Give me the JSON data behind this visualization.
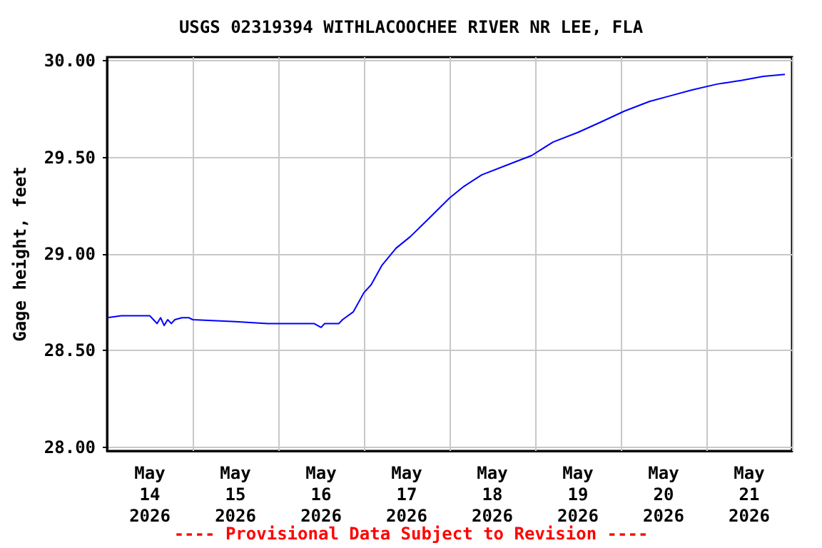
{
  "chart_data": {
    "type": "line",
    "title": "USGS 02319394 WITHLACOOCHEE RIVER NR LEE, FLA",
    "ylabel": "Gage height, feet",
    "annotations": [
      "---- Provisional Data Subject to Revision ----"
    ],
    "xlim": [
      "2026-05-14T00:00",
      "2026-05-22T00:00"
    ],
    "xticks": [
      {
        "value": "2026-05-14T12:00",
        "label": "May\n14\n2026"
      },
      {
        "value": "2026-05-15T00:00",
        "label": null
      },
      {
        "value": "2026-05-15T12:00",
        "label": "May\n15\n2026"
      },
      {
        "value": "2026-05-16T00:00",
        "label": null
      },
      {
        "value": "2026-05-16T12:00",
        "label": "May\n16\n2026"
      },
      {
        "value": "2026-05-17T00:00",
        "label": null
      },
      {
        "value": "2026-05-17T12:00",
        "label": "May\n17\n2026"
      },
      {
        "value": "2026-05-18T00:00",
        "label": null
      },
      {
        "value": "2026-05-18T12:00",
        "label": "May\n18\n2026"
      },
      {
        "value": "2026-05-19T00:00",
        "label": null
      },
      {
        "value": "2026-05-19T12:00",
        "label": "May\n19\n2026"
      },
      {
        "value": "2026-05-20T00:00",
        "label": null
      },
      {
        "value": "2026-05-20T12:00",
        "label": "May\n20\n2026"
      },
      {
        "value": "2026-05-21T00:00",
        "label": null
      },
      {
        "value": "2026-05-21T12:00",
        "label": "May\n21\n2026"
      },
      {
        "value": "2026-05-22T00:00",
        "label": null
      }
    ],
    "ylim": [
      27.98,
      30.02
    ],
    "yticks": [
      {
        "value": 28,
        "label": "28.00"
      },
      {
        "value": 28.5,
        "label": "28.50"
      },
      {
        "value": 29,
        "label": "29.00"
      },
      {
        "value": 29.5,
        "label": "29.50"
      },
      {
        "value": 30,
        "label": "30.00"
      }
    ],
    "grid": true,
    "marker": "none",
    "line_style": "solid",
    "series": [
      {
        "color": "#0000ff",
        "x": [
          "2026-05-14T00:00",
          "2026-05-14T04:00",
          "2026-05-14T12:00",
          "2026-05-14T13:00",
          "2026-05-14T14:00",
          "2026-05-14T15:00",
          "2026-05-14T16:00",
          "2026-05-14T17:00",
          "2026-05-14T18:00",
          "2026-05-14T19:00",
          "2026-05-14T21:00",
          "2026-05-14T23:00",
          "2026-05-15T00:00",
          "2026-05-15T12:00",
          "2026-05-15T21:00",
          "2026-05-16T10:00",
          "2026-05-16T12:00",
          "2026-05-16T13:00",
          "2026-05-16T17:00",
          "2026-05-16T18:00",
          "2026-05-16T21:00",
          "2026-05-17T00:00",
          "2026-05-17T02:00",
          "2026-05-17T05:00",
          "2026-05-17T09:00",
          "2026-05-17T13:00",
          "2026-05-17T18:00",
          "2026-05-18T00:00",
          "2026-05-18T04:00",
          "2026-05-18T09:00",
          "2026-05-18T16:00",
          "2026-05-18T23:00",
          "2026-05-19T05:00",
          "2026-05-19T12:00",
          "2026-05-19T18:00",
          "2026-05-20T01:00",
          "2026-05-20T08:00",
          "2026-05-20T14:00",
          "2026-05-20T20:00",
          "2026-05-21T03:00",
          "2026-05-21T10:00",
          "2026-05-21T16:00",
          "2026-05-21T22:00"
        ],
        "values": [
          28.67,
          28.68,
          28.68,
          28.66,
          28.64,
          28.67,
          28.63,
          28.66,
          28.64,
          28.66,
          28.67,
          28.67,
          28.66,
          28.65,
          28.64,
          28.64,
          28.62,
          28.64,
          28.64,
          28.66,
          28.7,
          28.8,
          28.84,
          28.94,
          29.03,
          29.09,
          29.18,
          29.29,
          29.35,
          29.41,
          29.46,
          29.51,
          29.58,
          29.63,
          29.68,
          29.74,
          29.79,
          29.82,
          29.85,
          29.88,
          29.9,
          29.92,
          29.93
        ]
      }
    ]
  }
}
